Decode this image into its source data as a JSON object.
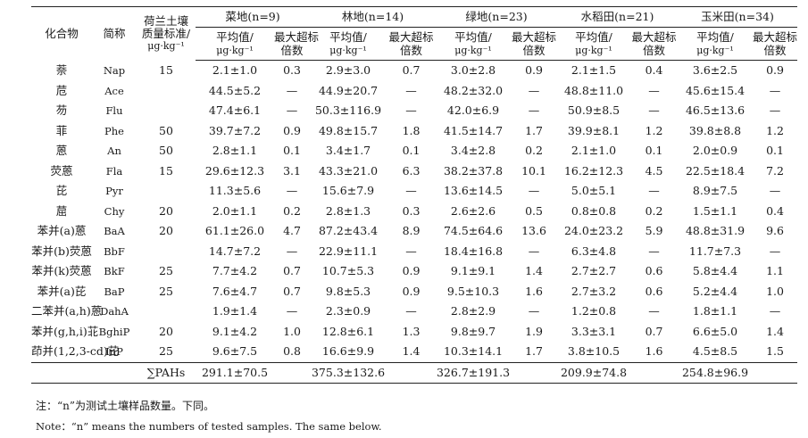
{
  "table": {
    "headers": {
      "compound": "化合物",
      "abbr": "简称",
      "standard_line1": "荷兰土壤",
      "standard_line2": "质量标准/",
      "standard_line3": "μg·kg⁻¹",
      "land_uses": [
        "菜地(n=9)",
        "林地(n=14)",
        "绿地(n=23)",
        "水稻田(n=21)",
        "玉米田(n=34)"
      ],
      "mean_line1": "平均值/",
      "mean_line2": "μg·kg⁻¹",
      "exceed_line1": "最大超标",
      "exceed_line2": "倍数"
    },
    "rows": [
      {
        "compound": "萘",
        "abbr": "Nap",
        "standard": "15",
        "values": [
          "2.1±1.0",
          "0.3",
          "2.9±3.0",
          "0.7",
          "3.0±2.8",
          "0.9",
          "2.1±1.5",
          "0.4",
          "3.6±2.5",
          "0.9"
        ]
      },
      {
        "compound": "苊",
        "abbr": "Ace",
        "standard": "",
        "values": [
          "44.5±5.2",
          "—",
          "44.9±20.7",
          "—",
          "48.2±32.0",
          "—",
          "48.8±11.0",
          "—",
          "45.6±15.4",
          "—"
        ]
      },
      {
        "compound": "芴",
        "abbr": "Flu",
        "standard": "",
        "values": [
          "47.4±6.1",
          "—",
          "50.3±116.9",
          "—",
          "42.0±6.9",
          "—",
          "50.9±8.5",
          "—",
          "46.5±13.6",
          "—"
        ]
      },
      {
        "compound": "菲",
        "abbr": "Phe",
        "standard": "50",
        "values": [
          "39.7±7.2",
          "0.9",
          "49.8±15.7",
          "1.8",
          "41.5±14.7",
          "1.7",
          "39.9±8.1",
          "1.2",
          "39.8±8.8",
          "1.2"
        ]
      },
      {
        "compound": "蒽",
        "abbr": "An",
        "standard": "50",
        "values": [
          "2.8±1.1",
          "0.1",
          "3.4±1.7",
          "0.1",
          "3.4±2.8",
          "0.2",
          "2.1±1.0",
          "0.1",
          "2.0±0.9",
          "0.1"
        ]
      },
      {
        "compound": "荧蒽",
        "abbr": "Fla",
        "standard": "15",
        "values": [
          "29.6±12.3",
          "3.1",
          "43.3±21.0",
          "6.3",
          "38.2±37.8",
          "10.1",
          "16.2±12.3",
          "4.5",
          "22.5±18.4",
          "7.2"
        ]
      },
      {
        "compound": "芘",
        "abbr": "Pyr",
        "standard": "",
        "values": [
          "11.3±5.6",
          "—",
          "15.6±7.9",
          "—",
          "13.6±14.5",
          "—",
          "5.0±5.1",
          "—",
          "8.9±7.5",
          "—"
        ]
      },
      {
        "compound": "䓛",
        "abbr": "Chy",
        "standard": "20",
        "values": [
          "2.0±1.1",
          "0.2",
          "2.8±1.3",
          "0.3",
          "2.6±2.6",
          "0.5",
          "0.8±0.8",
          "0.2",
          "1.5±1.1",
          "0.4"
        ]
      },
      {
        "compound": "苯并(a)蒽",
        "abbr": "BaA",
        "standard": "20",
        "values": [
          "61.1±26.0",
          "4.7",
          "87.2±43.4",
          "8.9",
          "74.5±64.6",
          "13.6",
          "24.0±23.2",
          "5.9",
          "48.8±31.9",
          "9.6"
        ]
      },
      {
        "compound": "苯并(b)荧蒽",
        "abbr": "BbF",
        "standard": "",
        "values": [
          "14.7±7.2",
          "—",
          "22.9±11.1",
          "—",
          "18.4±16.8",
          "—",
          "6.3±4.8",
          "—",
          "11.7±7.3",
          "—"
        ]
      },
      {
        "compound": "苯并(k)荧蒽",
        "abbr": "BkF",
        "standard": "25",
        "values": [
          "7.7±4.2",
          "0.7",
          "10.7±5.3",
          "0.9",
          "9.1±9.1",
          "1.4",
          "2.7±2.7",
          "0.6",
          "5.8±4.4",
          "1.1"
        ]
      },
      {
        "compound": "苯并(a)芘",
        "abbr": "BaP",
        "standard": "25",
        "values": [
          "7.6±4.7",
          "0.7",
          "9.8±5.3",
          "0.9",
          "9.5±10.3",
          "1.6",
          "2.7±3.2",
          "0.6",
          "5.2±4.4",
          "1.0"
        ]
      },
      {
        "compound": "二苯并(a,h)蒽",
        "abbr": "DahA",
        "standard": "",
        "values": [
          "1.9±1.4",
          "—",
          "2.3±0.9",
          "—",
          "2.8±2.9",
          "—",
          "1.2±0.8",
          "—",
          "1.8±1.1",
          "—"
        ]
      },
      {
        "compound": "苯并(g,h,i)苝",
        "abbr": "BghiP",
        "standard": "20",
        "values": [
          "9.1±4.2",
          "1.0",
          "12.8±6.1",
          "1.3",
          "9.8±9.7",
          "1.9",
          "3.3±3.1",
          "0.7",
          "6.6±5.0",
          "1.4"
        ]
      },
      {
        "compound": "茚并(1,2,3-cd)芘",
        "abbr": "InP",
        "standard": "25",
        "values": [
          "9.6±7.5",
          "0.8",
          "16.6±9.9",
          "1.4",
          "10.3±14.1",
          "1.7",
          "3.8±10.5",
          "1.6",
          "4.5±8.5",
          "1.5"
        ]
      }
    ],
    "total": {
      "label": "∑PAHs",
      "values": [
        "291.1±70.5",
        "375.3±132.6",
        "326.7±191.3",
        "209.9±74.8",
        "254.8±96.9"
      ]
    }
  },
  "notes": {
    "cn": "注：“n”为测试土壤样品数量。下同。",
    "en": "Note：“n” means the numbers of tested samples. The same below."
  }
}
